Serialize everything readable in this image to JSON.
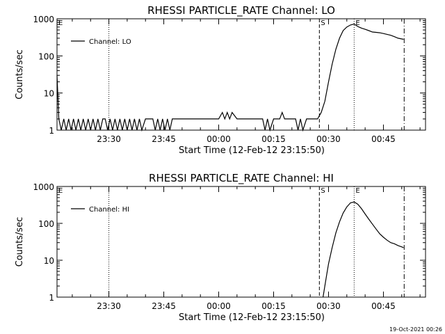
{
  "footer": {
    "date": "19-Oct-2021 00:26"
  },
  "chart_data": [
    {
      "type": "line",
      "title": "RHESSI PARTICLE_RATE Channel: LO",
      "xlabel": "Start Time (12-Feb-12 23:15:50)",
      "ylabel": "Counts/sec",
      "yscale": "log",
      "ylim": [
        1,
        1000
      ],
      "xlim": [
        "23:15:50",
        "00:56:30"
      ],
      "x_ticks": [
        "23:30",
        "23:45",
        "00:00",
        "00:15",
        "00:30",
        "00:45"
      ],
      "y_ticks": [
        "1",
        "10",
        "100",
        "1000"
      ],
      "legend": {
        "position": "top-left",
        "entries": [
          "Channel: LO"
        ]
      },
      "markers": [
        {
          "time": "23:15:50",
          "style": "solid",
          "label": "E"
        },
        {
          "time": "23:30:00",
          "style": "dotted",
          "label": ""
        },
        {
          "time": "00:27:30",
          "style": "dashed",
          "label": "S"
        },
        {
          "time": "00:37:00",
          "style": "dotted",
          "label": "E"
        },
        {
          "time": "00:50:40",
          "style": "dashdot",
          "label": ""
        }
      ],
      "series": [
        {
          "x": [
            "23:15:50",
            "23:16:20",
            "23:17:00",
            "23:17:40",
            "23:18:20",
            "23:19:00",
            "23:19:40",
            "23:20:20",
            "23:21:00",
            "23:21:40",
            "23:22:20",
            "23:23:00",
            "23:23:40",
            "23:24:20",
            "23:25:00",
            "23:25:40",
            "23:26:20",
            "23:27:00",
            "23:27:40",
            "23:28:20",
            "23:29:00",
            "23:29:40",
            "23:30:20",
            "23:31:00",
            "23:31:40",
            "23:32:20",
            "23:33:00",
            "23:33:40",
            "23:34:20",
            "23:35:00",
            "23:35:40",
            "23:36:20",
            "23:37:00",
            "23:37:40",
            "23:38:20",
            "23:39:00",
            "23:40:00",
            "23:41:00",
            "23:42:00",
            "23:42:40",
            "23:43:20",
            "23:44:00",
            "23:44:40",
            "23:45:20",
            "23:46:00",
            "23:46:40",
            "23:47:20",
            "23:48:00",
            "23:49:00",
            "23:50:00",
            "23:52:00",
            "23:54:00",
            "23:56:00",
            "23:58:00",
            "00:00:00",
            "00:01:00",
            "00:01:40",
            "00:02:20",
            "00:03:00",
            "00:03:40",
            "00:05:00",
            "00:07:00",
            "00:09:00",
            "00:11:00",
            "00:12:00",
            "00:12:40",
            "00:13:20",
            "00:14:00",
            "00:15:00",
            "00:16:00",
            "00:16:40",
            "00:17:20",
            "00:18:00",
            "00:19:00",
            "00:20:00",
            "00:21:00",
            "00:21:40",
            "00:22:20",
            "00:23:00",
            "00:24:00",
            "00:25:00",
            "00:26:00",
            "00:27:00",
            "00:28:00",
            "00:29:00",
            "00:30:00",
            "00:31:00",
            "00:32:00",
            "00:33:00",
            "00:34:00",
            "00:35:00",
            "00:36:00",
            "00:37:00",
            "00:38:00",
            "00:39:00",
            "00:40:00",
            "00:41:00",
            "00:42:00",
            "00:43:00",
            "00:44:00",
            "00:45:00",
            "00:46:00",
            "00:47:00",
            "00:48:00",
            "00:49:00",
            "00:50:30"
          ],
          "y": [
            30,
            2,
            1,
            2,
            1,
            2,
            1,
            2,
            1,
            2,
            1,
            2,
            1,
            2,
            1,
            2,
            1,
            2,
            1,
            2,
            2,
            1,
            2,
            1,
            2,
            1,
            2,
            1,
            2,
            1,
            2,
            1,
            2,
            1,
            2,
            1,
            2,
            2,
            2,
            1,
            2,
            1,
            2,
            1,
            2,
            1,
            2,
            2,
            2,
            2,
            2,
            2,
            2,
            2,
            2,
            3,
            2,
            3,
            2,
            3,
            2,
            2,
            2,
            2,
            2,
            1,
            2,
            1,
            2,
            2,
            2,
            3,
            2,
            2,
            2,
            2,
            1,
            2,
            1,
            2,
            2,
            2,
            2,
            3,
            6,
            20,
            60,
            150,
            300,
            480,
            600,
            680,
            720,
            620,
            560,
            520,
            480,
            440,
            430,
            420,
            400,
            380,
            360,
            330,
            300,
            280
          ]
        }
      ]
    },
    {
      "type": "line",
      "title": "RHESSI PARTICLE_RATE Channel: HI",
      "xlabel": "Start Time (12-Feb-12 23:15:50)",
      "ylabel": "Counts/sec",
      "yscale": "log",
      "ylim": [
        1,
        1000
      ],
      "xlim": [
        "23:15:50",
        "00:56:30"
      ],
      "x_ticks": [
        "23:30",
        "23:45",
        "00:00",
        "00:15",
        "00:30",
        "00:45"
      ],
      "y_ticks": [
        "1",
        "10",
        "100",
        "1000"
      ],
      "legend": {
        "position": "top-left",
        "entries": [
          "Channel: HI"
        ]
      },
      "markers": [
        {
          "time": "23:15:50",
          "style": "solid",
          "label": "E"
        },
        {
          "time": "23:30:00",
          "style": "dotted",
          "label": ""
        },
        {
          "time": "00:27:30",
          "style": "dashed",
          "label": "S"
        },
        {
          "time": "00:37:00",
          "style": "dotted",
          "label": "E"
        },
        {
          "time": "00:50:40",
          "style": "dashdot",
          "label": ""
        }
      ],
      "series": [
        {
          "x": [
            "00:28:30",
            "00:29:00",
            "00:29:30",
            "00:30:00",
            "00:31:00",
            "00:32:00",
            "00:33:00",
            "00:34:00",
            "00:35:00",
            "00:36:00",
            "00:37:00",
            "00:38:00",
            "00:39:00",
            "00:40:00",
            "00:41:00",
            "00:42:00",
            "00:43:00",
            "00:44:00",
            "00:45:00",
            "00:46:00",
            "00:47:00",
            "00:48:00",
            "00:49:00",
            "00:50:00",
            "00:50:30"
          ],
          "y": [
            1,
            2,
            4,
            8,
            22,
            55,
            110,
            190,
            280,
            360,
            380,
            330,
            250,
            180,
            130,
            95,
            70,
            52,
            42,
            35,
            30,
            28,
            25,
            23,
            22
          ]
        }
      ]
    }
  ]
}
